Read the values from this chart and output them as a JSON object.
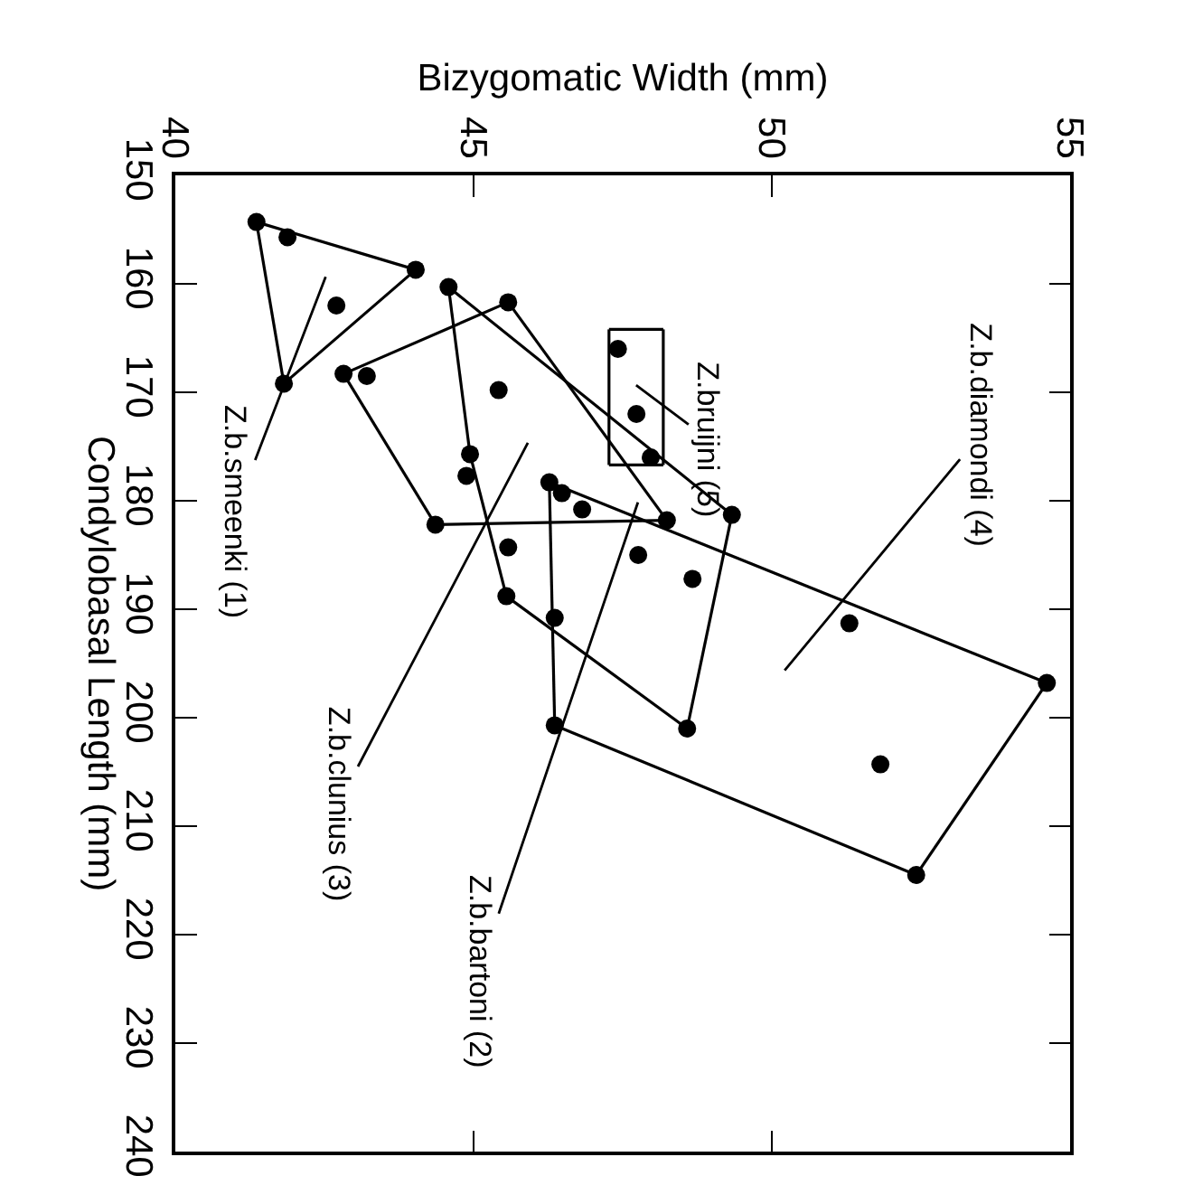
{
  "chart_data": {
    "type": "scatter",
    "xlabel": "Bizygomatic Width (mm)",
    "ylabel": "Condylobasal Length (mm)",
    "xlim": [
      40,
      55
    ],
    "xticks": [
      40,
      45,
      50,
      55
    ],
    "ylim": [
      240,
      150
    ],
    "yticks": [
      150,
      160,
      170,
      180,
      190,
      200,
      210,
      220,
      230,
      240
    ],
    "marker": "circle",
    "line_style": "solid",
    "series": [
      {
        "color": "#000000",
        "x": [
          41.36,
          41.88,
          44.03,
          42.7,
          41.82
        ],
        "values": [
          154.3,
          155.7,
          158.7,
          162.0,
          169.2
        ]
      },
      {
        "color": "#000000",
        "x": [
          44.58,
          49.33,
          48.58,
          45.55,
          44.94,
          46.82,
          45.58,
          47.76,
          48.67,
          46.36
        ],
        "values": [
          160.3,
          181.3,
          201.0,
          188.8,
          175.7,
          180.8,
          184.3,
          185.0,
          187.2,
          190.8
        ]
      },
      {
        "color": "#000000",
        "x": [
          45.58,
          48.24,
          44.36,
          42.82,
          43.21,
          45.42,
          44.88
        ],
        "values": [
          161.7,
          181.8,
          182.2,
          168.3,
          168.5,
          169.8,
          177.7
        ]
      },
      {
        "color": "#000000",
        "x": [
          46.27,
          46.48,
          54.61,
          52.42,
          46.36,
          51.3,
          51.82
        ],
        "values": [
          178.3,
          179.3,
          196.8,
          214.5,
          200.7,
          191.3,
          204.3
        ]
      },
      {
        "color": "#000000",
        "x": [
          47.42,
          47.73,
          47.97
        ],
        "values": [
          166.0,
          172.0,
          176.0
        ]
      },
      {
        "type": "line",
        "color": "#000000",
        "marker": "none",
        "x": [
          41.36,
          44.03
        ],
        "values": [
          154.3,
          158.7
        ]
      },
      {
        "type": "line",
        "color": "#000000",
        "marker": "none",
        "x": [
          41.82,
          44.03
        ],
        "values": [
          169.2,
          158.7
        ]
      },
      {
        "type": "line",
        "color": "#000000",
        "marker": "none",
        "x": [
          41.36,
          41.82
        ],
        "values": [
          154.3,
          169.2
        ]
      },
      {
        "type": "line",
        "color": "#000000",
        "marker": "none",
        "x": [
          44.58,
          49.33
        ],
        "values": [
          160.3,
          181.3
        ]
      },
      {
        "type": "line",
        "color": "#000000",
        "marker": "none",
        "x": [
          48.58,
          49.33
        ],
        "values": [
          201.0,
          181.3
        ]
      },
      {
        "type": "line",
        "color": "#000000",
        "marker": "none",
        "x": [
          45.55,
          48.58
        ],
        "values": [
          188.8,
          201.0
        ]
      },
      {
        "type": "line",
        "color": "#000000",
        "marker": "none",
        "x": [
          44.94,
          45.55
        ],
        "values": [
          175.7,
          188.8
        ]
      },
      {
        "type": "line",
        "color": "#000000",
        "marker": "none",
        "x": [
          44.58,
          44.94
        ],
        "values": [
          160.3,
          175.7
        ]
      },
      {
        "type": "line",
        "color": "#000000",
        "marker": "none",
        "x": [
          45.58,
          48.24
        ],
        "values": [
          161.7,
          181.8
        ]
      },
      {
        "type": "line",
        "color": "#000000",
        "marker": "none",
        "x": [
          44.36,
          48.24
        ],
        "values": [
          182.2,
          181.8
        ]
      },
      {
        "type": "line",
        "color": "#000000",
        "marker": "none",
        "x": [
          42.82,
          44.36
        ],
        "values": [
          168.3,
          182.2
        ]
      },
      {
        "type": "line",
        "color": "#000000",
        "marker": "none",
        "x": [
          42.82,
          45.58
        ],
        "values": [
          168.3,
          161.7
        ]
      },
      {
        "type": "line",
        "color": "#000000",
        "marker": "none",
        "x": [
          46.27,
          54.61
        ],
        "values": [
          178.3,
          196.8
        ]
      },
      {
        "type": "line",
        "color": "#000000",
        "marker": "none",
        "x": [
          52.42,
          54.61
        ],
        "values": [
          214.5,
          196.8
        ]
      },
      {
        "type": "line",
        "color": "#000000",
        "marker": "none",
        "x": [
          46.36,
          52.42
        ],
        "values": [
          200.7,
          214.5
        ]
      },
      {
        "type": "line",
        "color": "#000000",
        "marker": "none",
        "x": [
          46.27,
          46.36
        ],
        "values": [
          178.3,
          200.7
        ]
      },
      {
        "type": "line",
        "color": "#000000",
        "marker": "none",
        "x": [
          47.27,
          48.18
        ],
        "values": [
          164.2,
          164.2
        ]
      },
      {
        "type": "line",
        "color": "#000000",
        "marker": "none",
        "x": [
          48.18,
          48.18
        ],
        "values": [
          164.2,
          176.7
        ]
      },
      {
        "type": "line",
        "color": "#000000",
        "marker": "none",
        "x": [
          47.27,
          48.18
        ],
        "values": [
          176.7,
          176.7
        ]
      },
      {
        "type": "line",
        "color": "#000000",
        "marker": "none",
        "x": [
          47.27,
          47.27
        ],
        "values": [
          164.2,
          176.7
        ]
      }
    ],
    "annotations": [
      "Z.b.smeenki (1)",
      "Z.b.clunius (3)",
      "Z.b.bartoni (2)",
      "Z.b.diamondi (4)",
      "Z.bruijni (5)"
    ]
  }
}
